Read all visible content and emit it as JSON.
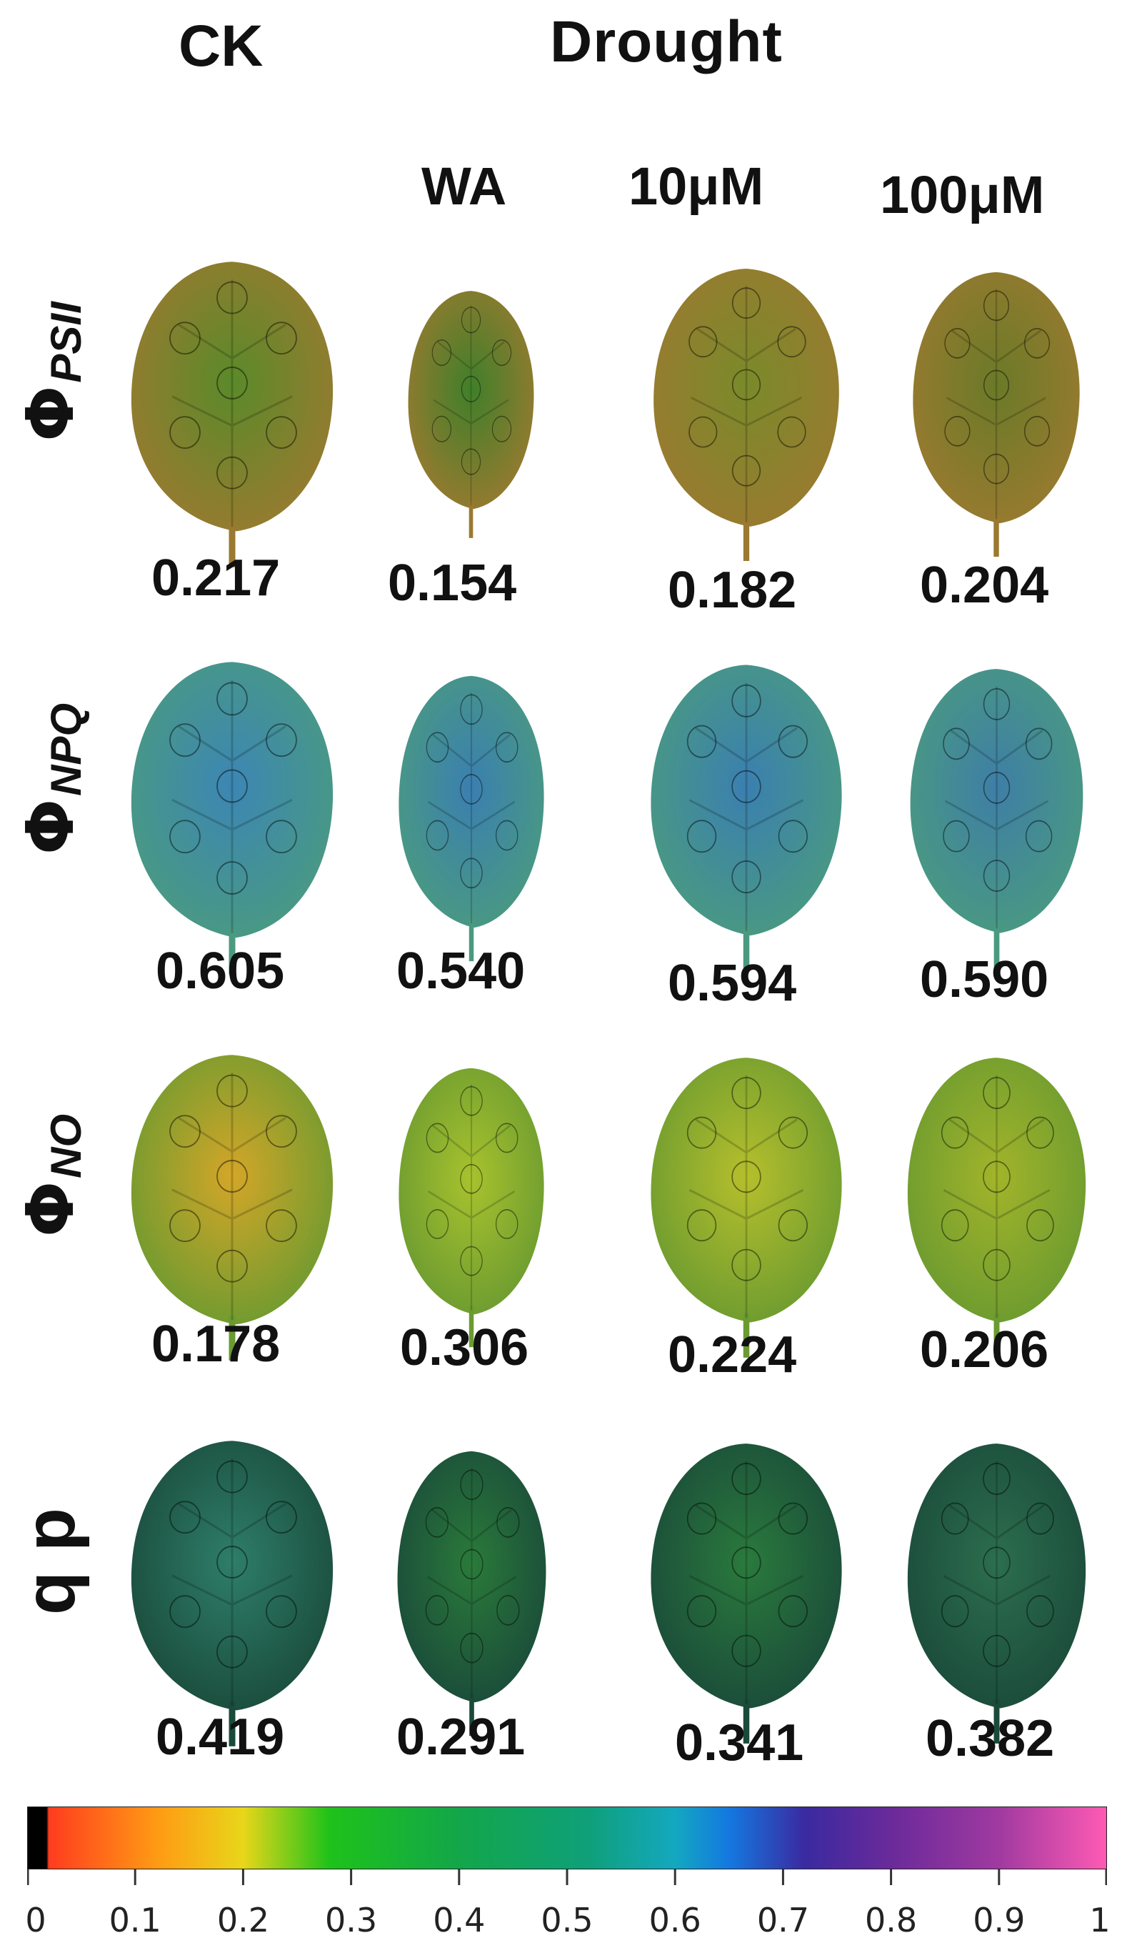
{
  "headers": {
    "ck": "CK",
    "drought": "Drought"
  },
  "columns": [
    "WA",
    "10μM",
    "100μM"
  ],
  "rows": [
    {
      "phi": "Φ",
      "sub": "PSII",
      "values": [
        "0.217",
        "0.154",
        "0.182",
        "0.204"
      ]
    },
    {
      "phi": "Φ",
      "sub": "NPQ",
      "values": [
        "0.605",
        "0.540",
        "0.594",
        "0.590"
      ]
    },
    {
      "phi": "Φ",
      "sub": "NO",
      "values": [
        "0.178",
        "0.306",
        "0.224",
        "0.206"
      ]
    },
    {
      "label": "q p",
      "values": [
        "0.419",
        "0.291",
        "0.341",
        "0.382"
      ]
    }
  ],
  "colorbar": {
    "ticks": [
      "0",
      "0.1",
      "0.2",
      "0.3",
      "0.4",
      "0.5",
      "0.6",
      "0.7",
      "0.8",
      "0.9",
      "1"
    ],
    "stops": [
      "#000000",
      "#000000",
      "#ff3c1e",
      "#ff9a14",
      "#e8d61a",
      "#1ec21a",
      "#13a64a",
      "#0fa07a",
      "#14a8c0",
      "#1478e0",
      "#3a2aa0",
      "#6a2a9a",
      "#a03aa0",
      "#ff5ab4"
    ]
  }
}
